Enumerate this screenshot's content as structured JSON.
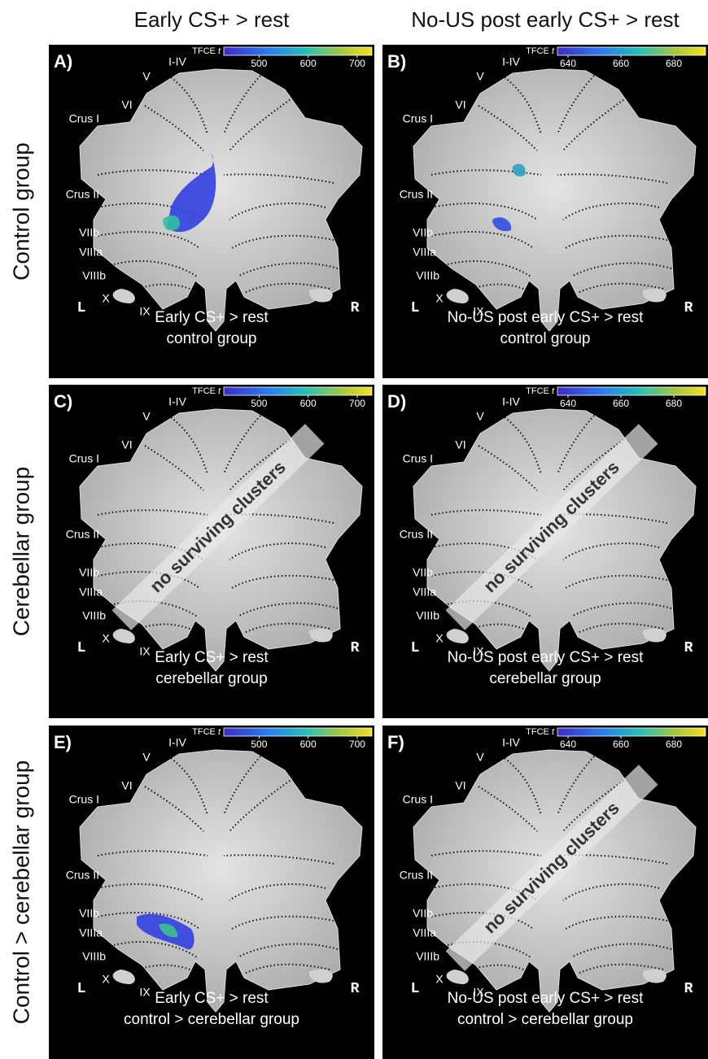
{
  "column_headers": [
    "Early CS+ > rest",
    "No-US post early CS+ > rest"
  ],
  "row_labels": [
    "Control group",
    "Cerebellar group",
    "Control > cerebellar group"
  ],
  "lobule_labels": [
    "I-IV",
    "V",
    "VI",
    "Crus I",
    "Crus II",
    "VIIb",
    "VIIIa",
    "VIIIb",
    "X",
    "IX"
  ],
  "side_labels": [
    "L",
    "R"
  ],
  "panels": [
    {
      "letter": "A)",
      "colorbar": {
        "label": "TFCE",
        "symbol": "t",
        "range": [
          428,
          730
        ],
        "ticks": [
          500,
          600,
          700
        ]
      },
      "caption": [
        "Early CS+ > rest",
        "control group"
      ]
    },
    {
      "letter": "B)",
      "colorbar": {
        "label": "TFCE",
        "symbol": "t",
        "range": [
          636,
          692
        ],
        "ticks": [
          640,
          660,
          680
        ]
      },
      "caption": [
        "No-US post early CS+ > rest",
        "control group"
      ]
    },
    {
      "letter": "C)",
      "colorbar": {
        "label": "TFCE",
        "symbol": "t",
        "range": [
          428,
          730
        ],
        "ticks": [
          500,
          600,
          700
        ]
      },
      "caption": [
        "Early CS+ > rest",
        "cerebellar group"
      ],
      "note": "no surviving clusters"
    },
    {
      "letter": "D)",
      "colorbar": {
        "label": "TFCE",
        "symbol": "t",
        "range": [
          636,
          692
        ],
        "ticks": [
          640,
          660,
          680
        ]
      },
      "caption": [
        "No-US post early CS+ > rest",
        "cerebellar group"
      ],
      "note": "no surviving clusters"
    },
    {
      "letter": "E)",
      "colorbar": {
        "label": "TFCE",
        "symbol": "t",
        "range": [
          428,
          730
        ],
        "ticks": [
          500,
          600,
          700
        ]
      },
      "caption": [
        "Early CS+ > rest",
        "control > cerebellar group"
      ]
    },
    {
      "letter": "F)",
      "colorbar": {
        "label": "TFCE",
        "symbol": "t",
        "range": [
          636,
          692
        ],
        "ticks": [
          640,
          660,
          680
        ]
      },
      "caption": [
        "No-US post early CS+ > rest",
        "control > cerebellar group"
      ],
      "note": "no surviving clusters"
    }
  ]
}
